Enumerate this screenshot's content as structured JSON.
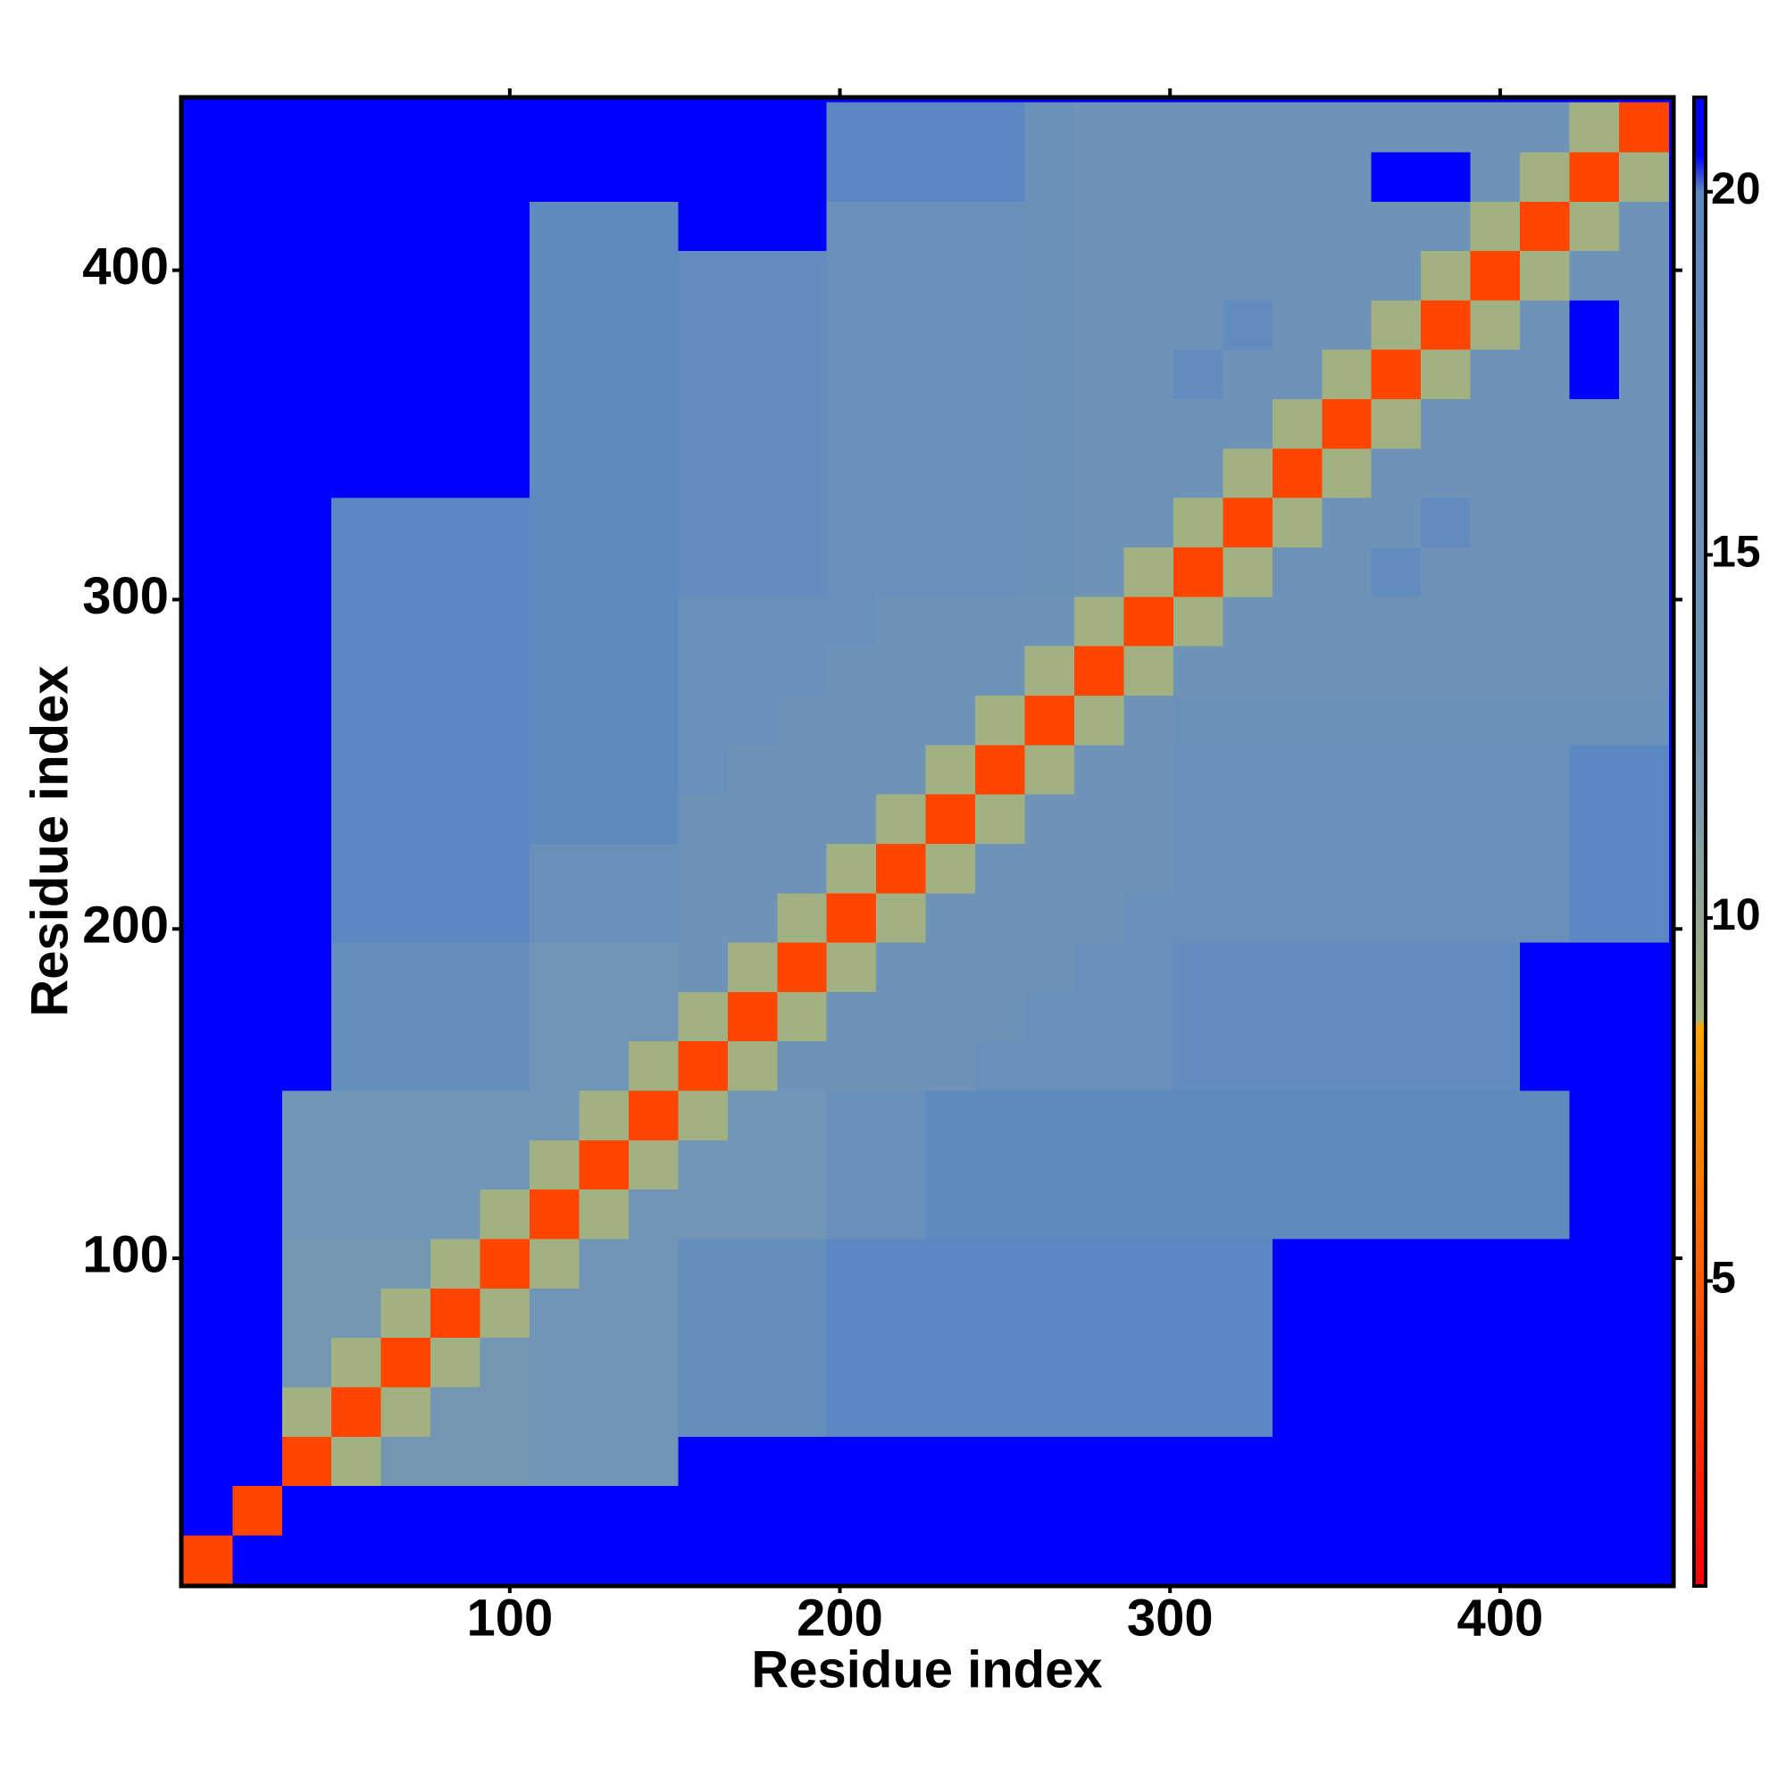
{
  "chart_data": {
    "type": "heatmap",
    "xlabel": "Residue index",
    "ylabel": "Residue index",
    "xlim": [
      0.5,
      452.5
    ],
    "ylim": [
      0.5,
      452.5
    ],
    "xticks": [
      100,
      200,
      300,
      400
    ],
    "yticks": [
      100,
      200,
      300,
      400
    ],
    "xbins": [
      1,
      16,
      31,
      46,
      61,
      76,
      91,
      106,
      121,
      136,
      151,
      166,
      181,
      196,
      211,
      226,
      241,
      256,
      271,
      286,
      301,
      316,
      331,
      346,
      361,
      376,
      391,
      406,
      421,
      436,
      451
    ],
    "ybins": [
      1,
      16,
      31,
      46,
      61,
      76,
      91,
      106,
      121,
      136,
      151,
      166,
      181,
      196,
      211,
      226,
      241,
      256,
      271,
      286,
      301,
      316,
      331,
      346,
      361,
      376,
      391,
      406,
      421,
      436,
      451
    ],
    "clim": [
      0.8,
      21.3
    ],
    "cticks": [
      5,
      10,
      15,
      20
    ],
    "colorscale": [
      [
        0.8,
        "#ff0000"
      ],
      [
        5,
        "#ff5a00"
      ],
      [
        8.5,
        "#ffa500"
      ],
      [
        8.6,
        "#a8b47a"
      ],
      [
        12,
        "#7497b4"
      ],
      [
        20,
        "#5b88c0"
      ],
      [
        20.5,
        "#0000ff"
      ],
      [
        21.3,
        "#0000ff"
      ]
    ],
    "z": [
      [
        4,
        21,
        21,
        21,
        21,
        21,
        21,
        21,
        21,
        21,
        21,
        21,
        21,
        21,
        21,
        21,
        21,
        21,
        21,
        21,
        21,
        21,
        21,
        21,
        21,
        21,
        21,
        21,
        21,
        21
      ],
      [
        21,
        4,
        21,
        21,
        21,
        21,
        21,
        21,
        21,
        21,
        21,
        21,
        21,
        21,
        21,
        21,
        21,
        21,
        21,
        21,
        21,
        21,
        21,
        21,
        21,
        21,
        21,
        21,
        21,
        21
      ],
      [
        21,
        21,
        4,
        9,
        12,
        12,
        12,
        13,
        13,
        13,
        21,
        21,
        21,
        21,
        21,
        21,
        21,
        21,
        21,
        21,
        21,
        21,
        21,
        21,
        21,
        21,
        21,
        21,
        21,
        21
      ],
      [
        21,
        21,
        9,
        4,
        9,
        12,
        12,
        13,
        13,
        13,
        17,
        17,
        17,
        20,
        20,
        20,
        20,
        20,
        20,
        20,
        20,
        20,
        21,
        21,
        21,
        21,
        21,
        21,
        21,
        21
      ],
      [
        21,
        21,
        12,
        9,
        4,
        9,
        12,
        13,
        13,
        13,
        17,
        17,
        17,
        20,
        20,
        20,
        20,
        20,
        20,
        20,
        20,
        20,
        21,
        21,
        21,
        21,
        21,
        21,
        21,
        21
      ],
      [
        21,
        21,
        12,
        12,
        9,
        4,
        9,
        13,
        13,
        13,
        17,
        17,
        17,
        20,
        20,
        20,
        20,
        20,
        20,
        20,
        20,
        20,
        21,
        21,
        21,
        21,
        21,
        21,
        21,
        21
      ],
      [
        21,
        21,
        12,
        12,
        12,
        9,
        4,
        9,
        13,
        13,
        17,
        17,
        17,
        20,
        20,
        20,
        20,
        20,
        20,
        20,
        20,
        20,
        21,
        21,
        21,
        21,
        21,
        21,
        21,
        21
      ],
      [
        21,
        21,
        13,
        13,
        13,
        13,
        9,
        4,
        9,
        13,
        13,
        13,
        13,
        16,
        16,
        19,
        19,
        19,
        19,
        19,
        19,
        19,
        19,
        19,
        19,
        19,
        19,
        19,
        21,
        21
      ],
      [
        21,
        21,
        13,
        13,
        13,
        13,
        13,
        9,
        4,
        9,
        13,
        13,
        13,
        16,
        16,
        19,
        19,
        19,
        19,
        19,
        19,
        19,
        19,
        19,
        19,
        19,
        19,
        19,
        21,
        21
      ],
      [
        21,
        21,
        13,
        13,
        13,
        13,
        13,
        13,
        9,
        4,
        9,
        13,
        13,
        16,
        16,
        19,
        19,
        19,
        19,
        19,
        19,
        19,
        19,
        19,
        19,
        19,
        19,
        19,
        21,
        21
      ],
      [
        21,
        21,
        21,
        17,
        17,
        17,
        17,
        13,
        13,
        9,
        4,
        9,
        14,
        14,
        14,
        14,
        16,
        16,
        16,
        16,
        18,
        18,
        18,
        18,
        18,
        18,
        18,
        21,
        21,
        21
      ],
      [
        21,
        21,
        21,
        17,
        17,
        17,
        17,
        13,
        13,
        13,
        9,
        4,
        9,
        14,
        14,
        14,
        14,
        16,
        16,
        16,
        18,
        18,
        18,
        18,
        18,
        18,
        18,
        21,
        21,
        21
      ],
      [
        21,
        21,
        21,
        17,
        17,
        17,
        17,
        13,
        13,
        13,
        14,
        9,
        4,
        9,
        14,
        14,
        14,
        14,
        16,
        16,
        18,
        18,
        18,
        18,
        18,
        18,
        18,
        21,
        21,
        21
      ],
      [
        21,
        21,
        21,
        20,
        20,
        20,
        20,
        16,
        16,
        16,
        14,
        14,
        9,
        4,
        9,
        14,
        14,
        14,
        14,
        16,
        16,
        16,
        16,
        16,
        16,
        16,
        16,
        16,
        20,
        20
      ],
      [
        21,
        21,
        21,
        20,
        20,
        20,
        20,
        16,
        16,
        16,
        14,
        14,
        14,
        9,
        4,
        9,
        14,
        14,
        14,
        14,
        16,
        16,
        16,
        16,
        16,
        16,
        16,
        16,
        20,
        20
      ],
      [
        21,
        21,
        21,
        20,
        20,
        20,
        20,
        19,
        19,
        19,
        14,
        14,
        14,
        14,
        9,
        4,
        9,
        14,
        14,
        14,
        16,
        16,
        16,
        16,
        16,
        16,
        16,
        16,
        20,
        20
      ],
      [
        21,
        21,
        21,
        20,
        20,
        20,
        20,
        19,
        19,
        19,
        16,
        14,
        14,
        14,
        14,
        9,
        4,
        9,
        14,
        14,
        16,
        16,
        16,
        16,
        16,
        16,
        16,
        16,
        20,
        20
      ],
      [
        21,
        21,
        21,
        20,
        20,
        20,
        20,
        19,
        19,
        19,
        16,
        16,
        14,
        14,
        14,
        14,
        9,
        4,
        9,
        14,
        15,
        15,
        15,
        15,
        15,
        15,
        15,
        15,
        15,
        15
      ],
      [
        21,
        21,
        21,
        20,
        20,
        20,
        20,
        19,
        19,
        19,
        16,
        16,
        16,
        14,
        14,
        14,
        14,
        9,
        4,
        9,
        14,
        14,
        14,
        14,
        14,
        14,
        14,
        14,
        14,
        14
      ],
      [
        21,
        21,
        21,
        20,
        20,
        20,
        20,
        19,
        19,
        19,
        16,
        16,
        16,
        16,
        14,
        14,
        14,
        14,
        9,
        4,
        9,
        14,
        14,
        14,
        14,
        14,
        14,
        14,
        14,
        14
      ],
      [
        21,
        21,
        21,
        20,
        20,
        20,
        20,
        19,
        19,
        19,
        18,
        18,
        18,
        16,
        16,
        16,
        16,
        15,
        14,
        9,
        4,
        9,
        14,
        14,
        18,
        14,
        14,
        14,
        14,
        14
      ],
      [
        21,
        21,
        21,
        20,
        20,
        20,
        20,
        19,
        19,
        19,
        18,
        18,
        18,
        16,
        16,
        16,
        16,
        15,
        14,
        14,
        9,
        4,
        9,
        14,
        14,
        18,
        14,
        14,
        14,
        14
      ],
      [
        21,
        21,
        21,
        21,
        21,
        21,
        21,
        19,
        19,
        19,
        18,
        18,
        18,
        16,
        16,
        16,
        16,
        15,
        14,
        14,
        14,
        9,
        4,
        9,
        14,
        14,
        14,
        14,
        14,
        14
      ],
      [
        21,
        21,
        21,
        21,
        21,
        21,
        21,
        19,
        19,
        19,
        18,
        18,
        18,
        16,
        16,
        16,
        16,
        15,
        14,
        14,
        14,
        14,
        9,
        4,
        9,
        14,
        14,
        14,
        14,
        14
      ],
      [
        21,
        21,
        21,
        21,
        21,
        21,
        21,
        19,
        19,
        19,
        18,
        18,
        18,
        16,
        16,
        16,
        16,
        15,
        14,
        14,
        18,
        14,
        14,
        9,
        4,
        9,
        14,
        14,
        21,
        14
      ],
      [
        21,
        21,
        21,
        21,
        21,
        21,
        21,
        19,
        19,
        19,
        18,
        18,
        18,
        16,
        16,
        16,
        16,
        15,
        14,
        14,
        14,
        18,
        14,
        14,
        9,
        4,
        9,
        14,
        21,
        14
      ],
      [
        21,
        21,
        21,
        21,
        21,
        21,
        21,
        19,
        19,
        19,
        18,
        18,
        18,
        16,
        16,
        16,
        16,
        15,
        14,
        14,
        14,
        14,
        14,
        14,
        14,
        9,
        4,
        9,
        14,
        14
      ],
      [
        21,
        21,
        21,
        21,
        21,
        21,
        21,
        19,
        19,
        19,
        21,
        21,
        21,
        16,
        16,
        16,
        16,
        15,
        14,
        14,
        14,
        14,
        14,
        14,
        14,
        14,
        9,
        4,
        9,
        14
      ],
      [
        21,
        21,
        21,
        21,
        21,
        21,
        21,
        21,
        21,
        21,
        21,
        21,
        21,
        20,
        20,
        20,
        20,
        15,
        14,
        14,
        14,
        14,
        14,
        14,
        21,
        21,
        14,
        9,
        4,
        9
      ],
      [
        21,
        21,
        21,
        21,
        21,
        21,
        21,
        21,
        21,
        21,
        21,
        21,
        21,
        20,
        20,
        20,
        20,
        15,
        14,
        14,
        14,
        14,
        14,
        14,
        14,
        14,
        14,
        14,
        9,
        4
      ]
    ]
  }
}
